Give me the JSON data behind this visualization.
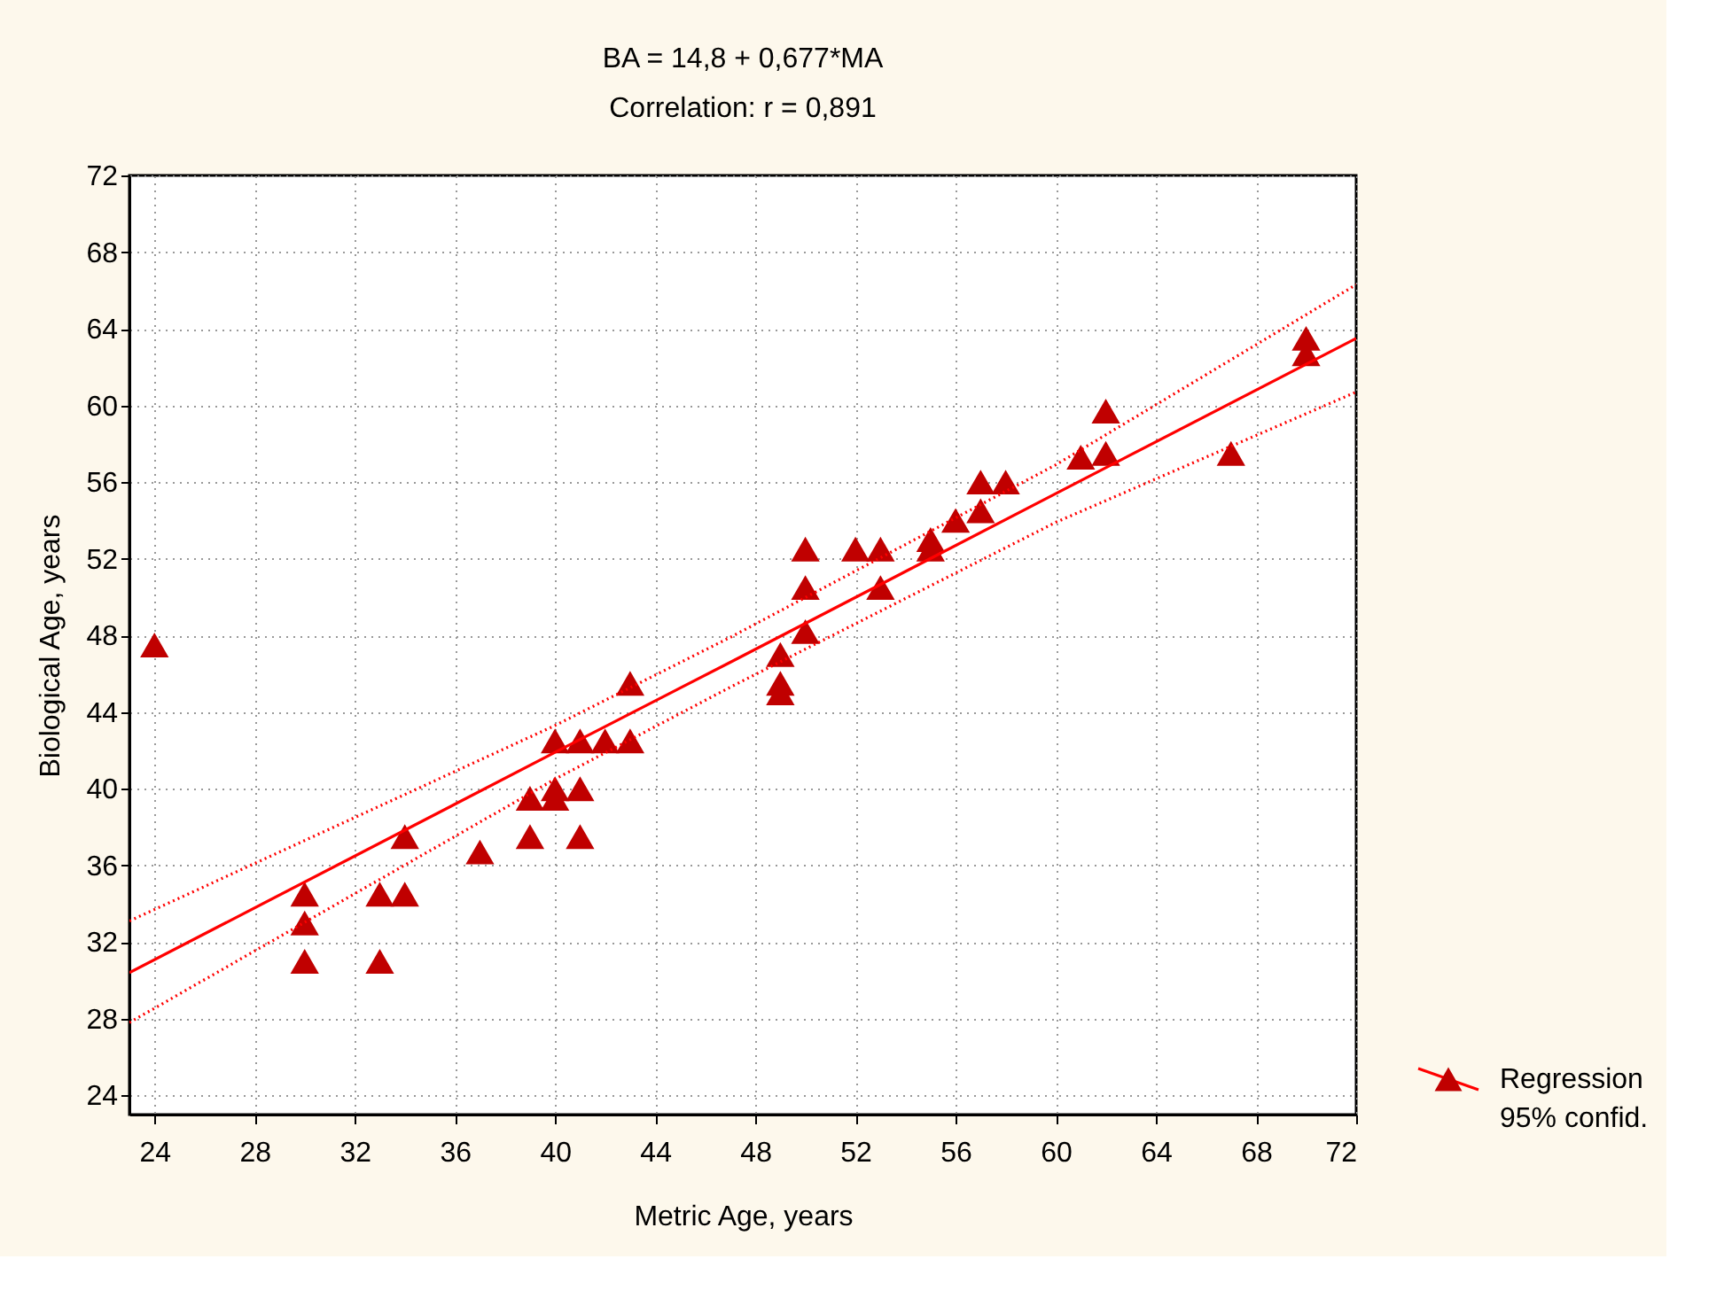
{
  "chart_data": {
    "type": "scatter",
    "title": "BA = 14,8 + 0,677*MA",
    "subtitle": "Correlation: r = 0,891",
    "xlabel": "Metric Age, years",
    "ylabel": "Biological Age, years",
    "xlim": [
      23,
      72
    ],
    "ylim": [
      23,
      72
    ],
    "xticks": [
      24,
      28,
      32,
      36,
      40,
      44,
      48,
      52,
      56,
      60,
      64,
      68,
      72
    ],
    "yticks": [
      24,
      28,
      32,
      36,
      40,
      44,
      48,
      52,
      56,
      60,
      64,
      68,
      72
    ],
    "grid": true,
    "legend": "bottom right",
    "series": [
      {
        "color": "#c00000",
        "marker": "triangle",
        "x": [
          24,
          30,
          30,
          30,
          33,
          33,
          34,
          34,
          37,
          39,
          39,
          40,
          40,
          40,
          41,
          41,
          41,
          42,
          43,
          43,
          49,
          49,
          49,
          50,
          50,
          50,
          52,
          53,
          53,
          55,
          55,
          56,
          57,
          57,
          58,
          61,
          62,
          62,
          67,
          70,
          70
        ],
        "values": [
          47.5,
          34.5,
          33,
          31,
          34.5,
          31,
          34.5,
          37.5,
          36.7,
          39.5,
          37.5,
          42.5,
          40,
          39.5,
          42.5,
          40,
          37.5,
          42.5,
          45.5,
          42.5,
          47,
          45.5,
          45,
          52.5,
          50.5,
          48.2,
          52.5,
          52.5,
          50.5,
          53,
          52.5,
          54,
          56,
          54.5,
          56,
          57.3,
          59.7,
          57.5,
          57.5,
          63.5,
          62.7
        ]
      },
      {
        "type": "line",
        "name": "Regression",
        "color": "#ff0000",
        "line_style": "solid",
        "marker": "none",
        "x": [
          23,
          40,
          47,
          60,
          72
        ],
        "values": [
          30.4,
          41.9,
          46.6,
          55.4,
          63.5
        ]
      },
      {
        "type": "line",
        "color": "#ff0000",
        "line_style": "dotted",
        "marker": "none",
        "x": [
          23,
          40,
          47,
          60,
          72
        ],
        "values": [
          33.1,
          43.3,
          47.9,
          56.9,
          66.3
        ]
      },
      {
        "type": "line",
        "color": "#ff0000",
        "line_style": "dotted",
        "marker": "none",
        "x": [
          23,
          40,
          47,
          60,
          72
        ],
        "values": [
          27.8,
          40.5,
          45.3,
          53.9,
          60.7
        ]
      }
    ],
    "annotations": [
      "95% confid."
    ]
  }
}
